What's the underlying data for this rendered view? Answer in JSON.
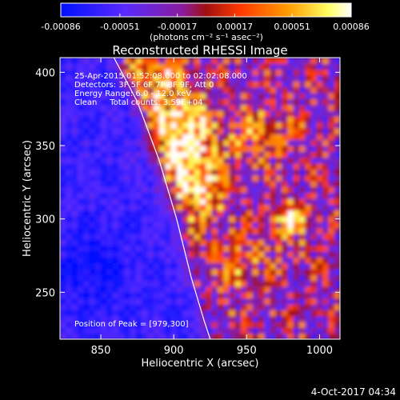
{
  "chart_data": {
    "type": "heatmap",
    "title": "Reconstructed RHESSI Image",
    "xlabel": "Heliocentric X (arcsec)",
    "ylabel": "Heliocentric Y (arcsec)",
    "xlim": [
      822,
      1014
    ],
    "ylim": [
      218,
      410
    ],
    "x_ticks": [
      850,
      900,
      950,
      1000
    ],
    "y_ticks": [
      250,
      300,
      350,
      400
    ],
    "colorbar": {
      "ticks": [
        "-0.00086",
        "-0.00051",
        "-0.00017",
        "0.00017",
        "0.00051",
        "0.00086"
      ],
      "values": [
        -0.00086,
        -0.00051,
        -0.00017,
        0.00017,
        0.00051,
        0.00086
      ],
      "unit_label": "(photons cm⁻² s⁻¹ asec⁻²)",
      "colors": [
        "#0010ff",
        "#5a2aff",
        "#8a1c9c",
        "#a01010",
        "#ff3a00",
        "#ff9a00",
        "#ffff60",
        "#ffffff"
      ]
    },
    "annotations": [
      "25-Apr-2015 01:52:08.000 to 02:02:08.000",
      "Detectors: 3F 5F 6F 7F 8F 9F, Att 0",
      "Energy Range: 6.0 - 12.0 keV",
      "Clean     Total counts: 3.59E+04"
    ],
    "peak_label": "Position of Peak = [979,300]",
    "peak": [
      979,
      300
    ],
    "limb_curve": [
      [
        859,
        410
      ],
      [
        875,
        380
      ],
      [
        890,
        340
      ],
      [
        902,
        300
      ],
      [
        912,
        260
      ],
      [
        921,
        230
      ],
      [
        925,
        218
      ]
    ]
  },
  "footer": {
    "date": "4-Oct-2017 04:34"
  }
}
